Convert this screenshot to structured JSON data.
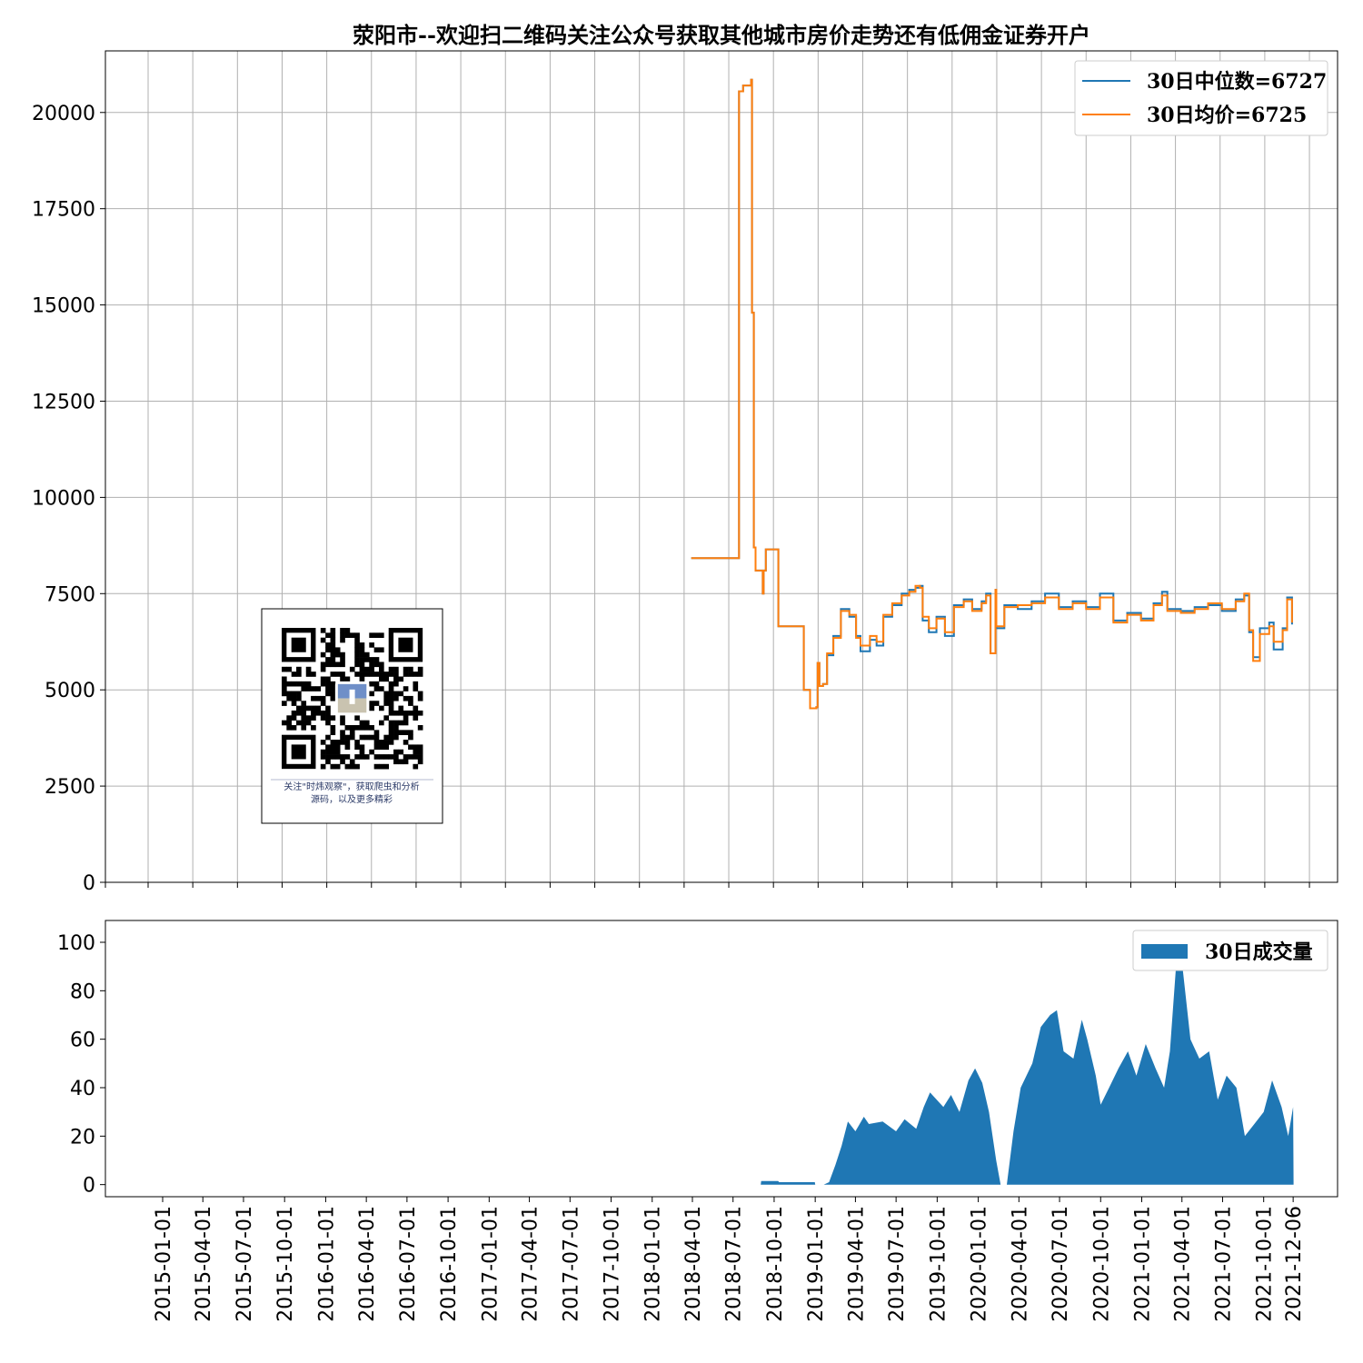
{
  "chart_data": [
    {
      "type": "line",
      "title": "荥阳市--欢迎扫二维码关注公众号获取其他城市房价走势还有低佣金证券开户",
      "ylim": [
        0,
        21600
      ],
      "yticks": [
        0,
        2500,
        5000,
        7500,
        10000,
        12500,
        15000,
        17500,
        20000
      ],
      "grid": true,
      "legend_position": "top-right",
      "series": [
        {
          "name": "30日中位数=6727",
          "color": "#1f77b4",
          "points": [
            [
              "2018-05-01",
              8420
            ],
            [
              "2018-08-15",
              8420
            ],
            [
              "2018-08-16",
              20550
            ],
            [
              "2018-08-25",
              20700
            ],
            [
              "2018-09-10",
              20700
            ],
            [
              "2018-09-12",
              20850
            ],
            [
              "2018-09-14",
              14800
            ],
            [
              "2018-09-18",
              8700
            ],
            [
              "2018-09-22",
              8100
            ],
            [
              "2018-10-05",
              8100
            ],
            [
              "2018-10-08",
              7500
            ],
            [
              "2018-10-10",
              8100
            ],
            [
              "2018-10-15",
              8650
            ],
            [
              "2018-11-10",
              8650
            ],
            [
              "2018-11-12",
              6650
            ],
            [
              "2018-12-20",
              6650
            ],
            [
              "2019-01-05",
              6650
            ],
            [
              "2019-01-08",
              5000
            ],
            [
              "2019-01-20",
              5000
            ],
            [
              "2019-01-22",
              4520
            ],
            [
              "2019-02-05",
              4550
            ],
            [
              "2019-02-08",
              5700
            ],
            [
              "2019-02-12",
              5100
            ],
            [
              "2019-02-20",
              5150
            ],
            [
              "2019-03-01",
              5900
            ],
            [
              "2019-03-15",
              6400
            ],
            [
              "2019-04-01",
              7100
            ],
            [
              "2019-04-20",
              6900
            ],
            [
              "2019-05-05",
              6400
            ],
            [
              "2019-05-15",
              6000
            ],
            [
              "2019-06-05",
              6300
            ],
            [
              "2019-06-20",
              6150
            ],
            [
              "2019-07-05",
              6900
            ],
            [
              "2019-07-25",
              7200
            ],
            [
              "2019-08-15",
              7500
            ],
            [
              "2019-09-01",
              7600
            ],
            [
              "2019-09-15",
              7650
            ],
            [
              "2019-09-25",
              7700
            ],
            [
              "2019-10-01",
              6800
            ],
            [
              "2019-10-15",
              6500
            ],
            [
              "2019-11-01",
              6900
            ],
            [
              "2019-11-20",
              6400
            ],
            [
              "2019-12-10",
              7200
            ],
            [
              "2020-01-01",
              7350
            ],
            [
              "2020-01-20",
              7100
            ],
            [
              "2020-02-10",
              7300
            ],
            [
              "2020-02-20",
              7500
            ],
            [
              "2020-03-01",
              5950
            ],
            [
              "2020-03-10",
              5950
            ],
            [
              "2020-03-12",
              7600
            ],
            [
              "2020-03-14",
              6600
            ],
            [
              "2020-04-01",
              7200
            ],
            [
              "2020-05-01",
              7100
            ],
            [
              "2020-06-01",
              7300
            ],
            [
              "2020-07-01",
              7500
            ],
            [
              "2020-08-01",
              7150
            ],
            [
              "2020-09-01",
              7300
            ],
            [
              "2020-10-01",
              7150
            ],
            [
              "2020-11-01",
              7500
            ],
            [
              "2020-12-01",
              6800
            ],
            [
              "2021-01-01",
              7000
            ],
            [
              "2021-02-01",
              6850
            ],
            [
              "2021-03-01",
              7250
            ],
            [
              "2021-03-20",
              7550
            ],
            [
              "2021-04-01",
              7100
            ],
            [
              "2021-05-01",
              7050
            ],
            [
              "2021-06-01",
              7150
            ],
            [
              "2021-07-01",
              7200
            ],
            [
              "2021-08-01",
              7050
            ],
            [
              "2021-09-01",
              7350
            ],
            [
              "2021-09-20",
              7450
            ],
            [
              "2021-10-01",
              6500
            ],
            [
              "2021-10-10",
              5850
            ],
            [
              "2021-10-25",
              6600
            ],
            [
              "2021-11-15",
              6750
            ],
            [
              "2021-11-25",
              6050
            ],
            [
              "2021-12-15",
              6600
            ],
            [
              "2021-12-25",
              7400
            ],
            [
              "2022-01-05",
              6700
            ]
          ]
        },
        {
          "name": "30日均价=6725",
          "color": "#ff7f0e",
          "points": [
            [
              "2018-05-01",
              8420
            ],
            [
              "2018-08-15",
              8420
            ],
            [
              "2018-08-16",
              20550
            ],
            [
              "2018-08-25",
              20700
            ],
            [
              "2018-09-10",
              20700
            ],
            [
              "2018-09-12",
              20850
            ],
            [
              "2018-09-14",
              14800
            ],
            [
              "2018-09-18",
              8700
            ],
            [
              "2018-09-22",
              8100
            ],
            [
              "2018-10-05",
              8100
            ],
            [
              "2018-10-08",
              7500
            ],
            [
              "2018-10-10",
              8100
            ],
            [
              "2018-10-15",
              8650
            ],
            [
              "2018-11-10",
              8650
            ],
            [
              "2018-11-12",
              6650
            ],
            [
              "2018-12-20",
              6650
            ],
            [
              "2019-01-05",
              6650
            ],
            [
              "2019-01-08",
              5000
            ],
            [
              "2019-01-20",
              5000
            ],
            [
              "2019-01-22",
              4520
            ],
            [
              "2019-02-05",
              4550
            ],
            [
              "2019-02-08",
              5700
            ],
            [
              "2019-02-12",
              5100
            ],
            [
              "2019-02-20",
              5150
            ],
            [
              "2019-03-01",
              5950
            ],
            [
              "2019-03-15",
              6350
            ],
            [
              "2019-04-01",
              7050
            ],
            [
              "2019-04-20",
              6950
            ],
            [
              "2019-05-05",
              6350
            ],
            [
              "2019-05-15",
              6150
            ],
            [
              "2019-06-05",
              6400
            ],
            [
              "2019-06-20",
              6250
            ],
            [
              "2019-07-05",
              6950
            ],
            [
              "2019-07-25",
              7250
            ],
            [
              "2019-08-15",
              7450
            ],
            [
              "2019-09-01",
              7550
            ],
            [
              "2019-09-15",
              7700
            ],
            [
              "2019-09-25",
              7650
            ],
            [
              "2019-10-01",
              6900
            ],
            [
              "2019-10-15",
              6600
            ],
            [
              "2019-11-01",
              6850
            ],
            [
              "2019-11-20",
              6500
            ],
            [
              "2019-12-10",
              7150
            ],
            [
              "2020-01-01",
              7300
            ],
            [
              "2020-01-20",
              7050
            ],
            [
              "2020-02-10",
              7250
            ],
            [
              "2020-02-20",
              7450
            ],
            [
              "2020-03-01",
              5950
            ],
            [
              "2020-03-10",
              5950
            ],
            [
              "2020-03-12",
              7600
            ],
            [
              "2020-03-14",
              6650
            ],
            [
              "2020-04-01",
              7150
            ],
            [
              "2020-05-01",
              7200
            ],
            [
              "2020-06-01",
              7250
            ],
            [
              "2020-07-01",
              7400
            ],
            [
              "2020-08-01",
              7100
            ],
            [
              "2020-09-01",
              7250
            ],
            [
              "2020-10-01",
              7100
            ],
            [
              "2020-11-01",
              7400
            ],
            [
              "2020-12-01",
              6750
            ],
            [
              "2021-01-01",
              6950
            ],
            [
              "2021-02-01",
              6800
            ],
            [
              "2021-03-01",
              7200
            ],
            [
              "2021-03-20",
              7450
            ],
            [
              "2021-04-01",
              7050
            ],
            [
              "2021-05-01",
              7000
            ],
            [
              "2021-06-01",
              7100
            ],
            [
              "2021-07-01",
              7250
            ],
            [
              "2021-08-01",
              7100
            ],
            [
              "2021-09-01",
              7300
            ],
            [
              "2021-09-20",
              7500
            ],
            [
              "2021-10-01",
              6550
            ],
            [
              "2021-10-10",
              5750
            ],
            [
              "2021-10-25",
              6450
            ],
            [
              "2021-11-15",
              6650
            ],
            [
              "2021-11-25",
              6250
            ],
            [
              "2021-12-15",
              6550
            ],
            [
              "2021-12-25",
              7350
            ],
            [
              "2022-01-05",
              6750
            ]
          ]
        }
      ]
    },
    {
      "type": "area",
      "ylim": [
        -5,
        109
      ],
      "yticks": [
        0,
        20,
        40,
        60,
        80,
        100
      ],
      "grid": false,
      "legend_position": "top-right",
      "xticks": [
        "2015-01-01",
        "2015-04-01",
        "2015-07-01",
        "2015-10-01",
        "2016-01-01",
        "2016-04-01",
        "2016-07-01",
        "2016-10-01",
        "2017-01-01",
        "2017-04-01",
        "2017-07-01",
        "2017-10-01",
        "2018-01-01",
        "2018-04-01",
        "2018-07-01",
        "2018-10-01",
        "2019-01-01",
        "2019-04-01",
        "2019-07-01",
        "2019-10-01",
        "2020-01-01",
        "2020-04-01",
        "2020-07-01",
        "2020-10-01",
        "2021-01-01",
        "2021-04-01",
        "2021-07-01",
        "2021-10-01",
        "2021-12-06"
      ],
      "series": [
        {
          "name": "30日成交量",
          "color": "#1f77b4",
          "points": [
            [
              "2018-09-01",
              0
            ],
            [
              "2018-09-02",
              1.5
            ],
            [
              "2018-10-10",
              1.5
            ],
            [
              "2018-10-12",
              1
            ],
            [
              "2018-12-31",
              1
            ],
            [
              "2019-01-01",
              0
            ],
            [
              "2019-01-20",
              0
            ],
            [
              "2019-02-01",
              1
            ],
            [
              "2019-02-15",
              8
            ],
            [
              "2019-03-01",
              16
            ],
            [
              "2019-03-15",
              26
            ],
            [
              "2019-04-01",
              22
            ],
            [
              "2019-04-20",
              28
            ],
            [
              "2019-05-01",
              25
            ],
            [
              "2019-06-01",
              26
            ],
            [
              "2019-07-01",
              22
            ],
            [
              "2019-07-20",
              27
            ],
            [
              "2019-08-15",
              23
            ],
            [
              "2019-09-01",
              32
            ],
            [
              "2019-09-15",
              38
            ],
            [
              "2019-10-15",
              32
            ],
            [
              "2019-11-01",
              37
            ],
            [
              "2019-11-20",
              30
            ],
            [
              "2019-12-10",
              43
            ],
            [
              "2019-12-25",
              48
            ],
            [
              "2020-01-10",
              42
            ],
            [
              "2020-01-25",
              30
            ],
            [
              "2020-02-10",
              10
            ],
            [
              "2020-02-20",
              0
            ],
            [
              "2020-03-05",
              0
            ],
            [
              "2020-03-20",
              22
            ],
            [
              "2020-04-05",
              40
            ],
            [
              "2020-05-01",
              50
            ],
            [
              "2020-05-20",
              65
            ],
            [
              "2020-06-10",
              70
            ],
            [
              "2020-06-25",
              72
            ],
            [
              "2020-07-10",
              55
            ],
            [
              "2020-08-01",
              52
            ],
            [
              "2020-08-20",
              68
            ],
            [
              "2020-09-01",
              60
            ],
            [
              "2020-09-20",
              45
            ],
            [
              "2020-10-01",
              33
            ],
            [
              "2020-10-20",
              40
            ],
            [
              "2020-11-10",
              48
            ],
            [
              "2020-12-01",
              55
            ],
            [
              "2020-12-20",
              45
            ],
            [
              "2021-01-10",
              58
            ],
            [
              "2021-02-01",
              48
            ],
            [
              "2021-02-20",
              40
            ],
            [
              "2021-03-05",
              55
            ],
            [
              "2021-03-20",
              93
            ],
            [
              "2021-04-01",
              92
            ],
            [
              "2021-04-20",
              60
            ],
            [
              "2021-05-10",
              52
            ],
            [
              "2021-06-01",
              55
            ],
            [
              "2021-06-20",
              35
            ],
            [
              "2021-07-10",
              45
            ],
            [
              "2021-08-01",
              40
            ],
            [
              "2021-08-20",
              20
            ],
            [
              "2021-09-10",
              25
            ],
            [
              "2021-10-01",
              30
            ],
            [
              "2021-10-20",
              43
            ],
            [
              "2021-11-10",
              32
            ],
            [
              "2021-11-25",
              20
            ],
            [
              "2021-12-06",
              32
            ],
            [
              "2021-12-07",
              0
            ]
          ]
        }
      ]
    }
  ],
  "qr_box": {
    "caption_line1": "关注\"时炜观察\"，获取爬虫和分析",
    "caption_line2": "源码，以及更多精彩"
  }
}
